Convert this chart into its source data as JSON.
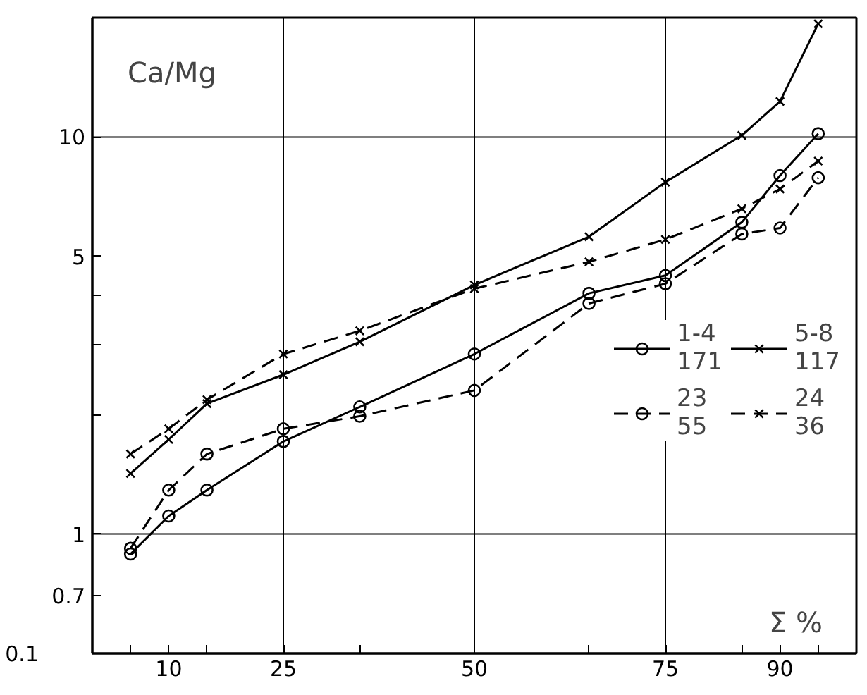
{
  "chart_data": {
    "type": "line",
    "xlabel": "Σ %",
    "ylabel": "Ca/Mg",
    "log": "y",
    "xlim": [
      0,
      100
    ],
    "ylim": [
      0.5,
      20
    ],
    "xticks": [
      {
        "value": 5,
        "label": null
      },
      10,
      {
        "value": 15,
        "label": null
      },
      25,
      {
        "value": 35,
        "label": null
      },
      50,
      {
        "value": 65,
        "label": null
      },
      75,
      {
        "value": 85,
        "label": null
      },
      90,
      {
        "value": 95,
        "label": null
      }
    ],
    "annotations": [
      "0.1"
    ],
    "yticks": [
      0.7,
      1,
      {
        "value": 2,
        "label": null
      },
      {
        "value": 3,
        "label": null
      },
      {
        "value": 4,
        "label": null
      },
      5,
      10
    ],
    "grid": false,
    "legend": "right",
    "ref_lines": [
      {
        "axis": "x",
        "value": 25
      },
      {
        "axis": "x",
        "value": 50
      },
      {
        "axis": "x",
        "value": 75
      },
      {
        "axis": "y",
        "value": 1
      },
      {
        "axis": "y",
        "value": 10
      }
    ],
    "x": [
      5,
      10,
      15,
      25,
      35,
      50,
      65,
      75,
      85,
      90,
      95
    ],
    "series": [
      {
        "name": "1-4\n171",
        "color": "#000000",
        "marker": "circle",
        "line_style": "solid",
        "values": [
          0.89,
          1.11,
          1.29,
          1.71,
          2.09,
          2.84,
          4.04,
          4.48,
          6.1,
          8.0,
          10.2
        ]
      },
      {
        "name": "5-8\n117",
        "color": "#000000",
        "marker": "cross",
        "line_style": "solid",
        "values": [
          1.42,
          1.73,
          2.13,
          2.52,
          3.05,
          4.24,
          5.61,
          7.7,
          10.1,
          12.3,
          19.3
        ]
      },
      {
        "name": "23\n55",
        "color": "#000000",
        "marker": "circle",
        "line_style": "dashed",
        "values": [
          0.92,
          1.29,
          1.59,
          1.84,
          1.98,
          2.3,
          3.81,
          4.27,
          5.7,
          5.9,
          7.9
        ]
      },
      {
        "name": "24\n36",
        "color": "#000000",
        "marker": "cross",
        "line_style": "dashed",
        "values": [
          1.59,
          1.84,
          2.18,
          2.84,
          3.25,
          4.15,
          4.85,
          5.52,
          6.6,
          7.4,
          8.7
        ]
      }
    ]
  }
}
